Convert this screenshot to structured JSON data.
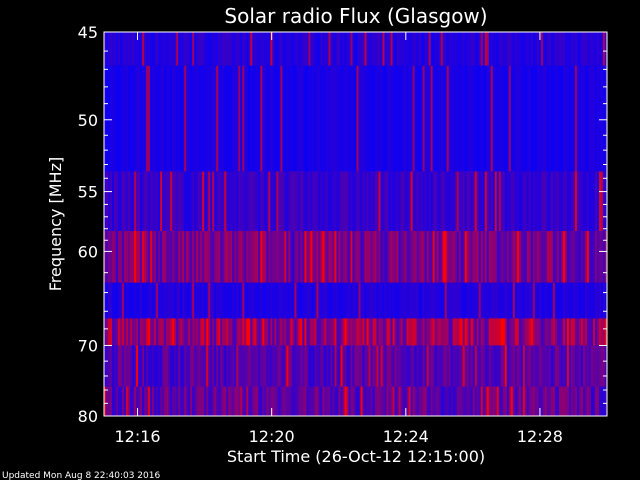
{
  "chart_data": {
    "type": "heatmap",
    "title": "Solar radio Flux (Glasgow)",
    "xlabel": "Start Time (26-Oct-12 12:15:00)",
    "ylabel": "Frequency [MHz]",
    "xlim": [
      "12:15:00",
      "12:30:00"
    ],
    "ylim": [
      45,
      80
    ],
    "y_scale": "reciprocal",
    "x_ticks": [
      "12:16",
      "12:20",
      "12:24",
      "12:28"
    ],
    "y_ticks": [
      "45",
      "50",
      "55",
      "60",
      "70",
      "80"
    ],
    "colormap": [
      "#0000ff",
      "#ff0000"
    ],
    "frequency_bands": [
      {
        "from_mhz": 45.0,
        "to_mhz": 46.8,
        "intensity": 0.18
      },
      {
        "from_mhz": 46.8,
        "to_mhz": 53.5,
        "intensity": 0.12
      },
      {
        "from_mhz": 53.5,
        "to_mhz": 58.2,
        "intensity": 0.25
      },
      {
        "from_mhz": 58.2,
        "to_mhz": 63.0,
        "intensity": 0.55
      },
      {
        "from_mhz": 63.0,
        "to_mhz": 66.8,
        "intensity": 0.15
      },
      {
        "from_mhz": 66.8,
        "to_mhz": 70.0,
        "intensity": 0.7
      },
      {
        "from_mhz": 70.0,
        "to_mhz": 75.5,
        "intensity": 0.4
      },
      {
        "from_mhz": 75.5,
        "to_mhz": 80.0,
        "intensity": 0.45
      }
    ],
    "grid": false
  },
  "footer": {
    "updated": "Updated Mon Aug  8 22:40:03 2016"
  }
}
